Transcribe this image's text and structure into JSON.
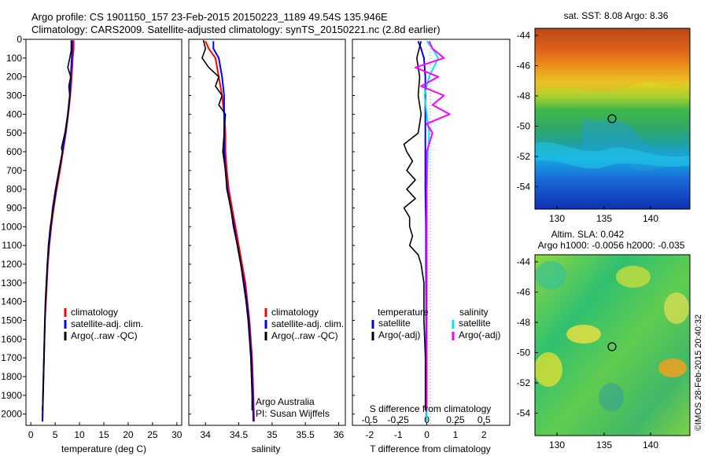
{
  "header": {
    "line1": "Argo profile: CS 1901150_157 23-Feb-2015 20150223_1189 49.54S 135.946E",
    "line2": "Climatology: CARS2009. Satellite-adjusted climatology: synTS_20150221.nc (2.8d earlier)"
  },
  "colors": {
    "climatology": "#ff0000",
    "satellite": "#0000ff",
    "argo": "#000000",
    "salinity_satellite": "#00e5ff",
    "salinity_argo": "#ff00ff"
  },
  "chart_data": [
    {
      "type": "line",
      "xlabel": "temperature (deg C)",
      "ylabel": "",
      "xlim": [
        -1,
        31
      ],
      "ylim": [
        2060,
        0
      ],
      "x_ticks": [
        0,
        5,
        10,
        15,
        20,
        25,
        30
      ],
      "y_ticks": [
        0,
        100,
        200,
        300,
        400,
        500,
        600,
        700,
        800,
        900,
        1000,
        1100,
        1200,
        1300,
        1400,
        1500,
        1600,
        1700,
        1800,
        1900,
        2000
      ],
      "legend": [
        "climatology",
        "satellite-adj. clim.",
        "Argo(..raw -QC)"
      ],
      "legend_position": "lower-center",
      "series": [
        {
          "name": "climatology",
          "color": "#ff0000",
          "points": [
            [
              8.8,
              5
            ],
            [
              8.8,
              50
            ],
            [
              8.6,
              100
            ],
            [
              8.4,
              200
            ],
            [
              8.1,
              300
            ],
            [
              7.7,
              400
            ],
            [
              7.2,
              500
            ],
            [
              6.6,
              600
            ],
            [
              6.0,
              700
            ],
            [
              5.3,
              800
            ],
            [
              4.7,
              900
            ],
            [
              4.2,
              1000
            ],
            [
              3.8,
              1100
            ],
            [
              3.5,
              1200
            ],
            [
              3.3,
              1300
            ],
            [
              3.1,
              1400
            ],
            [
              2.9,
              1500
            ],
            [
              2.8,
              1600
            ],
            [
              2.7,
              1700
            ],
            [
              2.6,
              1800
            ],
            [
              2.5,
              1900
            ],
            [
              2.4,
              2040
            ]
          ]
        },
        {
          "name": "satellite-adj. clim.",
          "color": "#0000ff",
          "points": [
            [
              8.5,
              5
            ],
            [
              8.5,
              50
            ],
            [
              8.4,
              100
            ],
            [
              8.2,
              200
            ],
            [
              8.0,
              300
            ],
            [
              7.6,
              400
            ],
            [
              7.1,
              500
            ],
            [
              6.5,
              600
            ],
            [
              5.8,
              700
            ],
            [
              5.1,
              800
            ],
            [
              4.5,
              900
            ],
            [
              4.1,
              1000
            ],
            [
              3.7,
              1100
            ],
            [
              3.4,
              1200
            ],
            [
              3.2,
              1300
            ],
            [
              3.0,
              1400
            ],
            [
              2.9,
              1500
            ],
            [
              2.8,
              1600
            ],
            [
              2.7,
              1700
            ],
            [
              2.6,
              1800
            ],
            [
              2.5,
              1900
            ],
            [
              2.4,
              2040
            ]
          ]
        },
        {
          "name": "Argo(..raw -QC)",
          "color": "#000000",
          "points": [
            [
              8.3,
              5
            ],
            [
              8.3,
              60
            ],
            [
              8.0,
              100
            ],
            [
              7.6,
              150
            ],
            [
              8.2,
              200
            ],
            [
              7.8,
              250
            ],
            [
              8.0,
              300
            ],
            [
              7.6,
              400
            ],
            [
              7.0,
              500
            ],
            [
              6.3,
              580
            ],
            [
              6.5,
              600
            ],
            [
              5.8,
              700
            ],
            [
              5.2,
              800
            ],
            [
              4.6,
              900
            ],
            [
              4.0,
              1000
            ],
            [
              3.6,
              1100
            ],
            [
              3.4,
              1200
            ],
            [
              3.2,
              1300
            ],
            [
              3.0,
              1400
            ],
            [
              2.9,
              1500
            ],
            [
              2.8,
              1600
            ],
            [
              2.7,
              1700
            ],
            [
              2.6,
              1800
            ],
            [
              2.5,
              1900
            ],
            [
              2.4,
              1980
            ]
          ]
        }
      ]
    },
    {
      "type": "line",
      "xlabel": "salinity",
      "ylabel": "",
      "xlim": [
        33.75,
        36.1
      ],
      "ylim": [
        2060,
        0
      ],
      "x_ticks": [
        34,
        34.5,
        35,
        35.5,
        36
      ],
      "legend": [
        "climatology",
        "satellite-adj. clim.",
        "Argo(..raw -QC)"
      ],
      "legend_position": "lower-center",
      "annotation": [
        "Argo Australia",
        "PI: Susan Wijffels"
      ],
      "series": [
        {
          "name": "climatology",
          "color": "#ff0000",
          "points": [
            [
              34.0,
              10
            ],
            [
              34.05,
              50
            ],
            [
              34.15,
              100
            ],
            [
              34.2,
              200
            ],
            [
              34.25,
              300
            ],
            [
              34.28,
              400
            ],
            [
              34.3,
              500
            ],
            [
              34.3,
              600
            ],
            [
              34.32,
              700
            ],
            [
              34.35,
              800
            ],
            [
              34.4,
              900
            ],
            [
              34.45,
              1000
            ],
            [
              34.5,
              1100
            ],
            [
              34.55,
              1200
            ],
            [
              34.6,
              1300
            ],
            [
              34.63,
              1400
            ],
            [
              34.66,
              1500
            ],
            [
              34.68,
              1600
            ],
            [
              34.7,
              1700
            ],
            [
              34.71,
              1800
            ],
            [
              34.72,
              1900
            ],
            [
              34.73,
              2040
            ]
          ]
        },
        {
          "name": "satellite-adj. clim.",
          "color": "#0000ff",
          "points": [
            [
              34.12,
              10
            ],
            [
              34.12,
              50
            ],
            [
              34.2,
              100
            ],
            [
              34.25,
              200
            ],
            [
              34.28,
              300
            ],
            [
              34.28,
              400
            ],
            [
              34.28,
              500
            ],
            [
              34.28,
              600
            ],
            [
              34.3,
              700
            ],
            [
              34.33,
              800
            ],
            [
              34.38,
              900
            ],
            [
              34.43,
              1000
            ],
            [
              34.48,
              1100
            ],
            [
              34.53,
              1200
            ],
            [
              34.58,
              1300
            ],
            [
              34.62,
              1400
            ],
            [
              34.65,
              1500
            ],
            [
              34.67,
              1600
            ],
            [
              34.69,
              1700
            ],
            [
              34.7,
              1800
            ],
            [
              34.71,
              1900
            ],
            [
              34.72,
              2040
            ]
          ]
        },
        {
          "name": "Argo(..raw -QC)",
          "color": "#000000",
          "points": [
            [
              33.97,
              5
            ],
            [
              34.0,
              50
            ],
            [
              33.95,
              100
            ],
            [
              34.05,
              150
            ],
            [
              34.2,
              200
            ],
            [
              34.15,
              250
            ],
            [
              34.25,
              300
            ],
            [
              34.2,
              350
            ],
            [
              34.3,
              400
            ],
            [
              34.28,
              500
            ],
            [
              34.26,
              600
            ],
            [
              34.3,
              700
            ],
            [
              34.32,
              800
            ],
            [
              34.38,
              900
            ],
            [
              34.42,
              1000
            ],
            [
              34.48,
              1100
            ],
            [
              34.53,
              1200
            ],
            [
              34.57,
              1300
            ],
            [
              34.61,
              1400
            ],
            [
              34.64,
              1500
            ],
            [
              34.66,
              1600
            ],
            [
              34.68,
              1700
            ],
            [
              34.69,
              1800
            ],
            [
              34.7,
              1900
            ],
            [
              34.7,
              1980
            ]
          ]
        }
      ]
    },
    {
      "type": "line",
      "xlabel": "T difference from climatology",
      "top_xlabel": "S difference from climatology",
      "ylabel": "",
      "xlim": [
        -2.6,
        2.9
      ],
      "ylim": [
        2060,
        0
      ],
      "x_ticks": [
        -2,
        -1,
        0,
        1,
        2
      ],
      "top_ticks": [
        {
          "value": -0.5,
          "label": "-0.5"
        },
        {
          "value": -0.25,
          "label": "-0.25"
        },
        {
          "value": 0,
          "label": "0"
        },
        {
          "value": 0.25,
          "label": "0.25"
        },
        {
          "value": 0.5,
          "label": "0.5"
        }
      ],
      "legend_headers": [
        "temperature",
        "salinity"
      ],
      "legend": [
        "satellite",
        "Argo(-adj)",
        "satellite",
        "Argo(-adj)"
      ],
      "legend_position": "lower-center",
      "series": [
        {
          "name": "satellite",
          "color": "#0000ff",
          "points": [
            [
              -0.3,
              10
            ],
            [
              -0.2,
              50
            ],
            [
              -0.1,
              100
            ],
            [
              -0.05,
              200
            ],
            [
              -0.05,
              300
            ],
            [
              -0.05,
              400
            ],
            [
              -0.05,
              500
            ],
            [
              -0.05,
              600
            ],
            [
              -0.05,
              700
            ],
            [
              -0.05,
              800
            ],
            [
              -0.04,
              900
            ],
            [
              -0.03,
              1000
            ],
            [
              -0.03,
              1200
            ],
            [
              -0.02,
              1400
            ],
            [
              -0.02,
              1600
            ],
            [
              -0.01,
              1800
            ],
            [
              -0.01,
              2040
            ]
          ]
        },
        {
          "name": "Argo(-adj)",
          "color": "#000000",
          "points": [
            [
              -0.2,
              10
            ],
            [
              -0.35,
              100
            ],
            [
              -0.25,
              200
            ],
            [
              -0.3,
              300
            ],
            [
              -0.2,
              400
            ],
            [
              -0.3,
              500
            ],
            [
              -0.8,
              560
            ],
            [
              -0.7,
              600
            ],
            [
              -0.5,
              650
            ],
            [
              -0.7,
              700
            ],
            [
              -0.4,
              750
            ],
            [
              -0.7,
              800
            ],
            [
              -0.4,
              850
            ],
            [
              -0.8,
              900
            ],
            [
              -0.6,
              950
            ],
            [
              -0.6,
              1000
            ],
            [
              -0.5,
              1050
            ],
            [
              -0.6,
              1100
            ],
            [
              -0.3,
              1150
            ],
            [
              -0.2,
              1200
            ],
            [
              -0.1,
              1300
            ],
            [
              -0.1,
              1500
            ],
            [
              -0.05,
              1700
            ],
            [
              -0.05,
              1900
            ],
            [
              -0.05,
              1980
            ]
          ]
        },
        {
          "name": "satellite",
          "color": "#00e5ff",
          "points": [
            [
              0.0,
              10
            ],
            [
              0.05,
              50
            ],
            [
              0.1,
              100
            ],
            [
              0.02,
              200
            ],
            [
              -0.02,
              300
            ],
            [
              0.0,
              400
            ],
            [
              0.02,
              500
            ],
            [
              0.01,
              600
            ],
            [
              0.0,
              800
            ],
            [
              0.0,
              1000
            ],
            [
              0.0,
              1400
            ],
            [
              0.0,
              1800
            ],
            [
              0.0,
              2040
            ]
          ]
        },
        {
          "name": "Argo(-adj)",
          "color": "#ff00ff",
          "points": [
            [
              0.02,
              10
            ],
            [
              0.05,
              50
            ],
            [
              0.15,
              100
            ],
            [
              -0.1,
              150
            ],
            [
              0.1,
              200
            ],
            [
              -0.05,
              250
            ],
            [
              0.15,
              300
            ],
            [
              0.05,
              350
            ],
            [
              0.2,
              400
            ],
            [
              0.0,
              450
            ],
            [
              0.05,
              500
            ],
            [
              0.0,
              600
            ],
            [
              0.0,
              800
            ],
            [
              0.0,
              1000
            ],
            [
              0.0,
              1400
            ],
            [
              0.0,
              1800
            ],
            [
              0.0,
              1980
            ]
          ]
        }
      ]
    }
  ],
  "maps": {
    "sst": {
      "title": "sat. SST: 8.08  Argo: 8.36",
      "lon_ticks": [
        "130",
        "135",
        "140"
      ],
      "lat_ticks": [
        "-44",
        "-46",
        "-48",
        "-50",
        "-52",
        "-54"
      ],
      "marker": {
        "lon": 135.946,
        "lat": -49.54
      }
    },
    "sla": {
      "title_line1": "Altim. SLA: 0.042",
      "title_line2": "Argo h1000: -0.0056  h2000: -0.035",
      "lon_ticks": [
        "130",
        "135",
        "140"
      ],
      "lat_ticks": [
        "-44",
        "-46",
        "-48",
        "-50",
        "-52",
        "-54"
      ],
      "marker": {
        "lon": 135.946,
        "lat": -49.54
      }
    }
  },
  "credit": "©IMOS 28-Feb-2015 20:40:32"
}
